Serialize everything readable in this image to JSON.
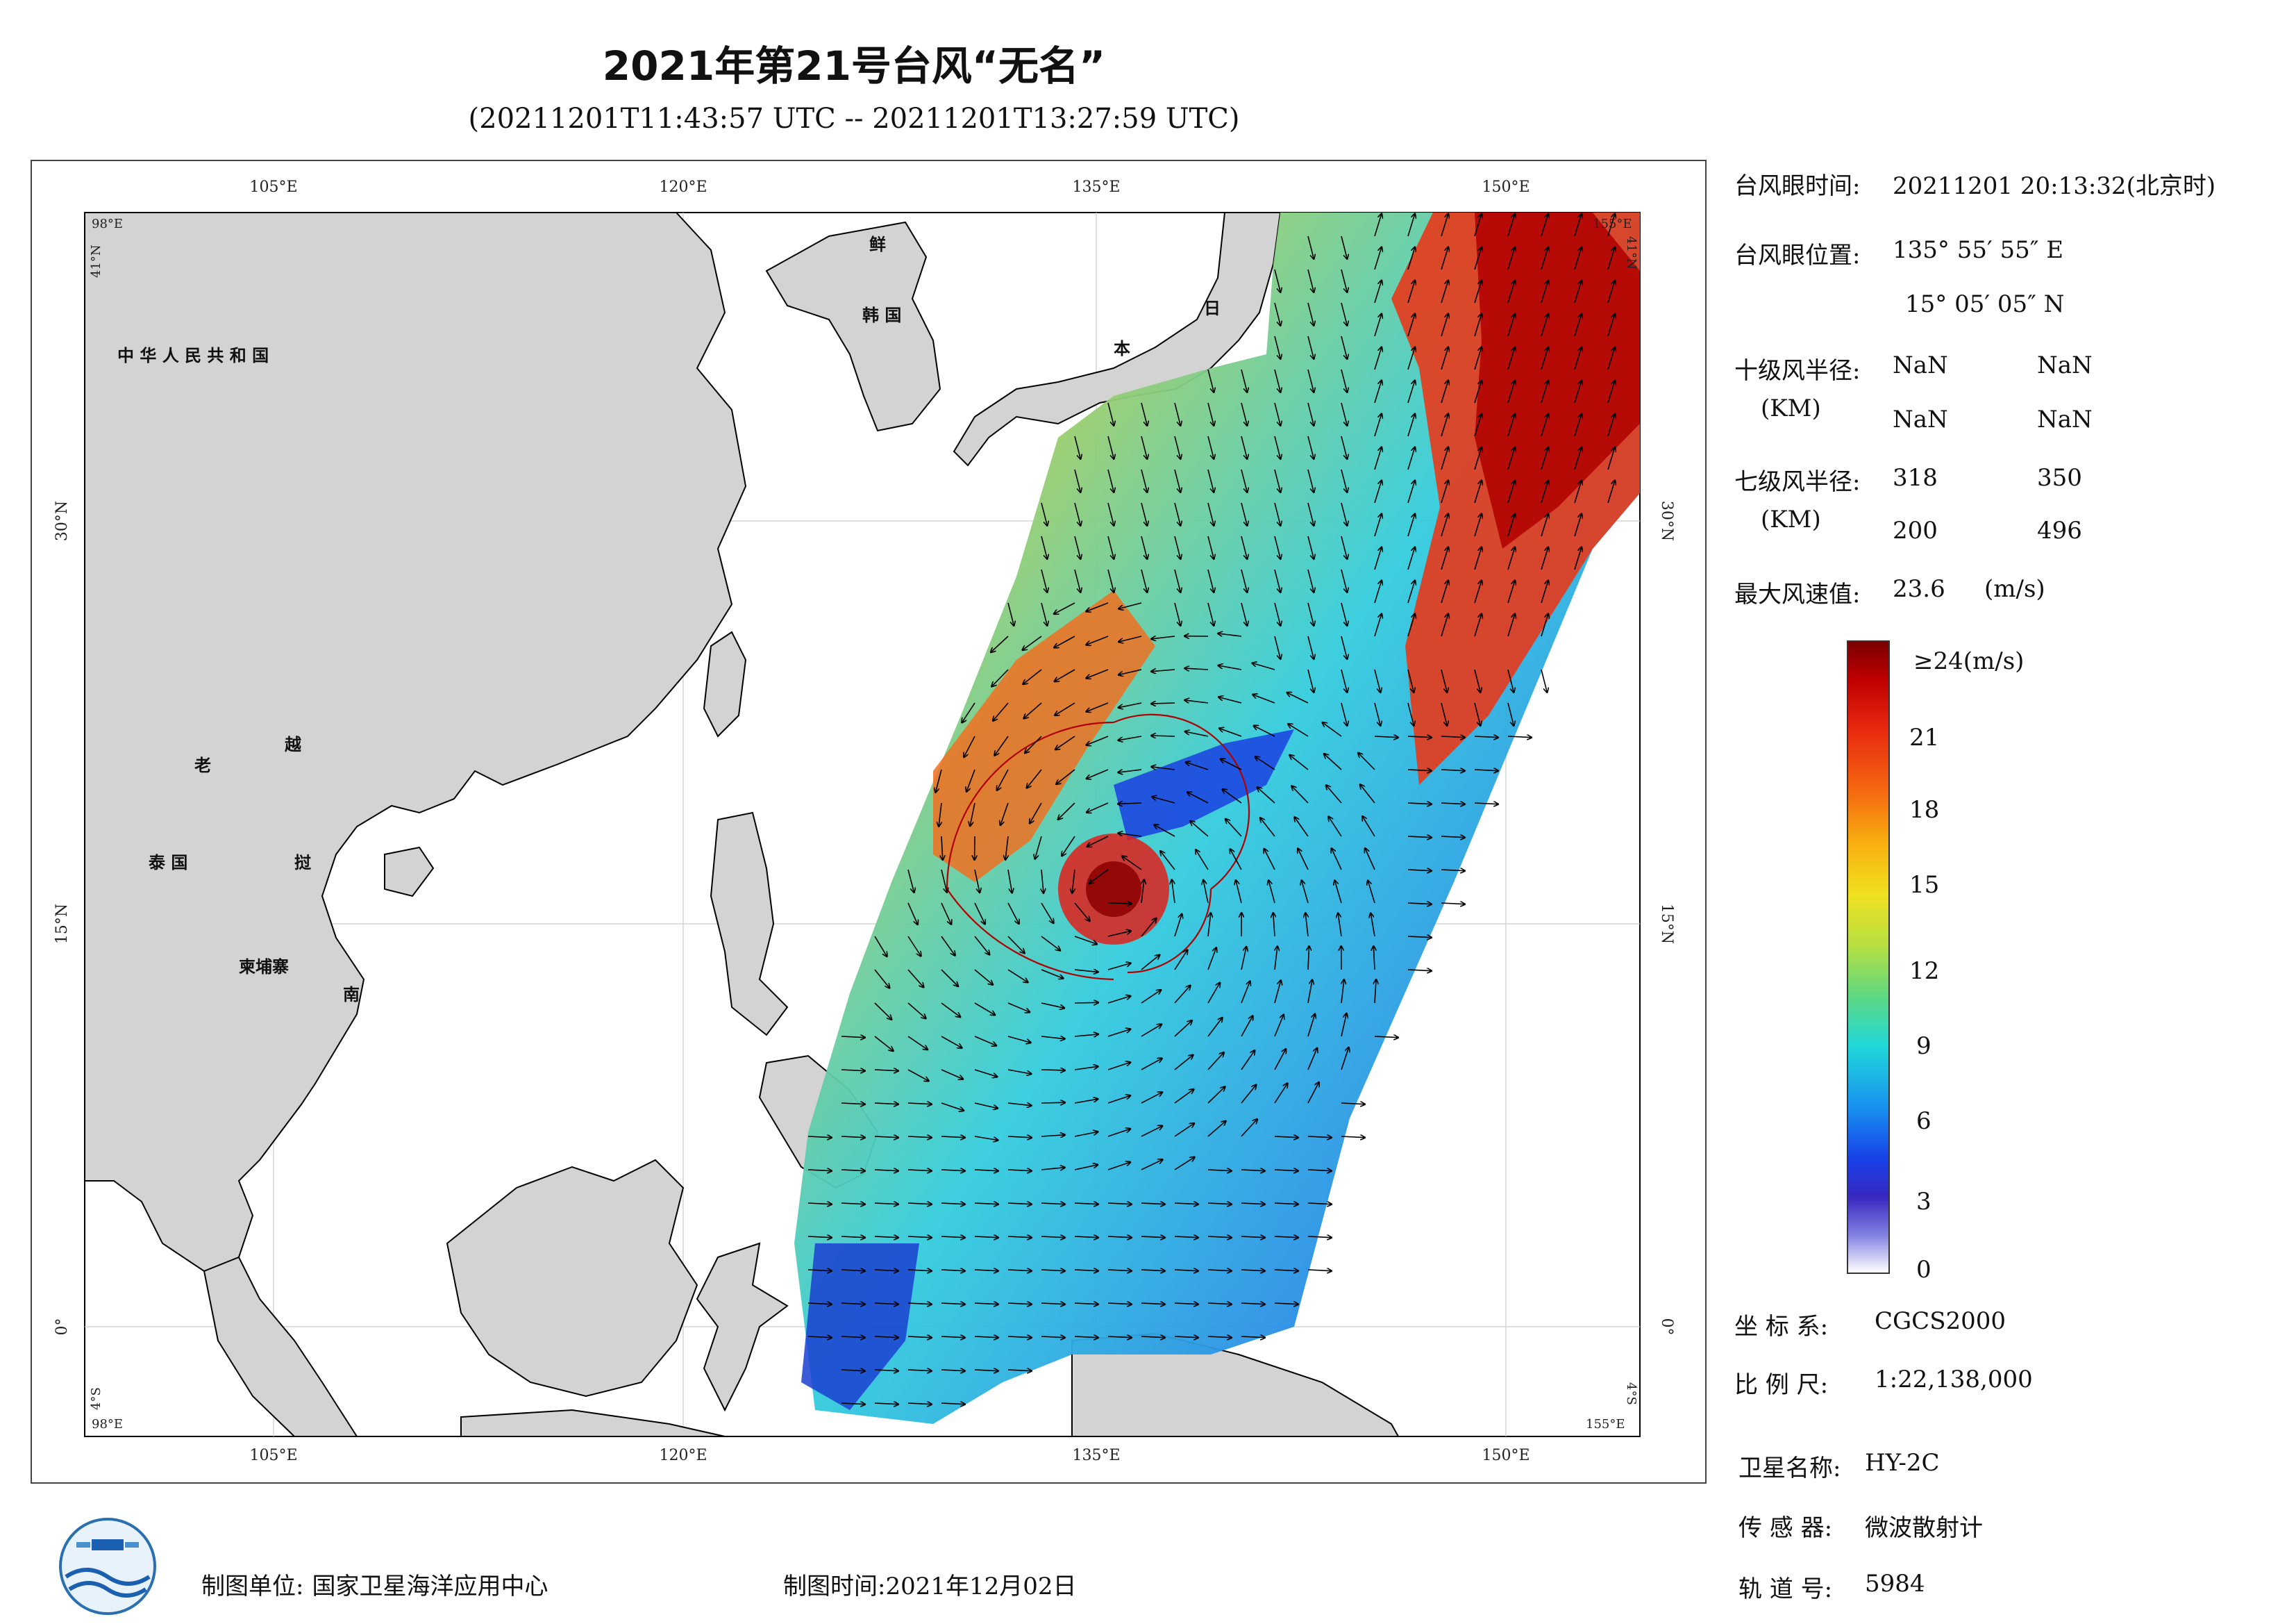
{
  "header": {
    "title": "2021年第21号台风“无名”",
    "subtitle": "(20211201T11:43:57 UTC -- 20211201T13:27:59 UTC)"
  },
  "map": {
    "lon_ticks_top": [
      "105°E",
      "120°E",
      "135°E",
      "150°E"
    ],
    "lon_ticks_bottom": [
      "105°E",
      "120°E",
      "135°E",
      "150°E"
    ],
    "lat_ticks_left": [
      "30°N",
      "15°N",
      "0°"
    ],
    "lat_ticks_right": [
      "30°N",
      "15°N",
      "0°"
    ],
    "corner_labels": {
      "top_left_lon": "98°E",
      "top_left_lat": "41°N",
      "top_right_lon": "155°E",
      "top_right_lat": "41°N",
      "bottom_left_lon": "98°E",
      "bottom_left_lat": "4°S",
      "bottom_right_lon": "155°E",
      "bottom_right_lat": "4°S"
    },
    "place_labels": {
      "china": "中 华 人 民 共 和 国",
      "korea_n": "鲜",
      "korea_s": "韩 国",
      "japan_1": "日",
      "japan_2": "本",
      "laos": "老",
      "vietnam_1": "越",
      "thailand": "泰 国",
      "vietnam_2": "挝",
      "cambodia": "柬埔寨",
      "vietnam_3": "南"
    }
  },
  "info": {
    "eye_time_label": "台风眼时间:",
    "eye_time_value": "20211201 20:13:32(北京时)",
    "eye_pos_label": "台风眼位置:",
    "eye_pos_lon": "135° 55′ 55″ E",
    "eye_pos_lat": "15° 05′ 05″ N",
    "r10_label": "十级风半径:",
    "r10_unit": "(KM)",
    "r10_values": [
      "NaN",
      "NaN",
      "NaN",
      "NaN"
    ],
    "r7_label": "七级风半径:",
    "r7_unit": "(KM)",
    "r7_values": [
      "318",
      "350",
      "200",
      "496"
    ],
    "max_wind_label": "最大风速值:",
    "max_wind_value": "23.6",
    "max_wind_unit": "(m/s)"
  },
  "colorbar": {
    "top_label": "≥24(m/s)",
    "ticks": [
      "21",
      "18",
      "15",
      "12",
      "9",
      "6",
      "3",
      "0"
    ]
  },
  "meta": {
    "coord_label": "坐 标 系:",
    "coord_value": "CGCS2000",
    "scale_label": "比 例 尺:",
    "scale_value": "1:22,138,000",
    "satellite_label": "卫星名称:",
    "satellite_value": "HY-2C",
    "sensor_label": "传 感 器:",
    "sensor_value": "微波散射计",
    "orbit_label": "轨 道 号:",
    "orbit_value": "5984"
  },
  "footer": {
    "unit_label": "制图单位:",
    "unit_value": "国家卫星海洋应用中心",
    "time_label": "制图时间:",
    "time_value": "2021年12月02日"
  },
  "colors": {
    "land": "#d3d3d3",
    "coast": "#000000",
    "max_wind": "#8b0000",
    "min_wind": "#ffffff",
    "track_line": "#c00000"
  }
}
